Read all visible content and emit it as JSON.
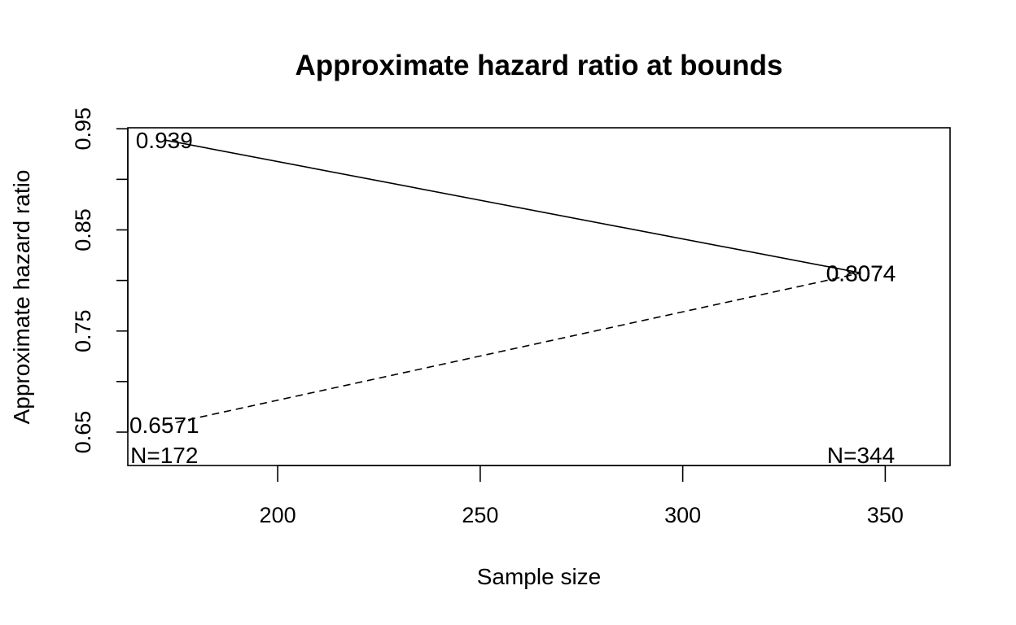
{
  "chart_data": {
    "type": "line",
    "title": "Approximate hazard ratio at bounds",
    "xlabel": "Sample size",
    "ylabel": "Approximate hazard ratio",
    "xlim": [
      163,
      366
    ],
    "ylim": [
      0.617,
      0.951
    ],
    "x_ticks": [
      200,
      250,
      300,
      350
    ],
    "x_tick_labels": [
      "200",
      "250",
      "300",
      "350"
    ],
    "y_ticks": [
      0.65,
      0.7,
      0.75,
      0.8,
      0.85,
      0.9,
      0.95
    ],
    "y_tick_labels": [
      "0.65",
      "",
      "0.75",
      "",
      "0.85",
      "",
      "0.95"
    ],
    "grid": false,
    "series": [
      {
        "line_style": "solid",
        "x": [
          172,
          344
        ],
        "y": [
          0.939,
          0.8074
        ],
        "labels": [
          "0.939",
          "0.8074"
        ]
      },
      {
        "line_style": "dashed",
        "x": [
          172,
          344
        ],
        "y": [
          0.6571,
          0.8074
        ],
        "labels": [
          "0.6571",
          "0.8074"
        ]
      }
    ],
    "sample_size_labels": [
      {
        "x": 172,
        "text": "N=172"
      },
      {
        "x": 344,
        "text": "N=344"
      }
    ]
  }
}
